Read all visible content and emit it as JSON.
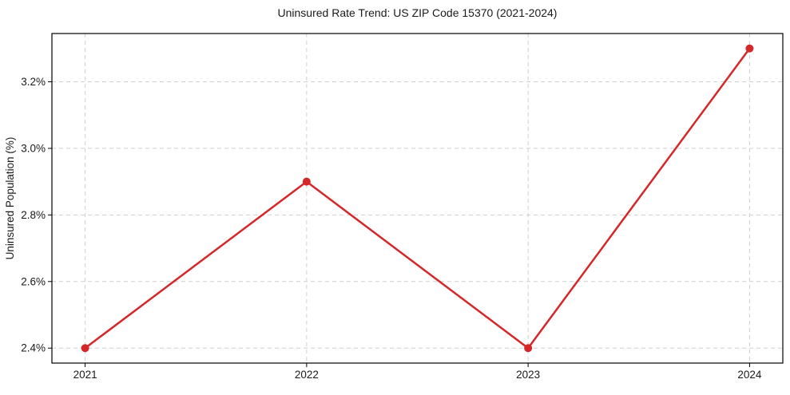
{
  "colors": {
    "line": "#d62728",
    "marker": "#d62728",
    "grid": "#cfcfcf",
    "axis": "#000000",
    "background": "#ffffff",
    "text": "#1a1a1a"
  },
  "chart_data": {
    "type": "line",
    "title": "Uninsured Rate Trend: US ZIP Code 15370 (2021-2024)",
    "xlabel": "",
    "ylabel": "Uninsured Population (%)",
    "x": [
      2021,
      2022,
      2023,
      2024
    ],
    "values": [
      2.4,
      2.9,
      2.4,
      3.3
    ],
    "xticks": {
      "values": [
        2021,
        2022,
        2023,
        2024
      ],
      "labels": [
        "2021",
        "2022",
        "2023",
        "2024"
      ]
    },
    "yticks": {
      "values": [
        2.4,
        2.6,
        2.8,
        3.0,
        3.2
      ],
      "labels": [
        "2.4%",
        "2.6%",
        "2.8%",
        "3.0%",
        "3.2%"
      ]
    },
    "xlim": [
      2020.85,
      2024.15
    ],
    "ylim": [
      2.355,
      3.345
    ],
    "grid": true,
    "legend": false,
    "marker_radius": 5,
    "line_width": 2.5
  }
}
